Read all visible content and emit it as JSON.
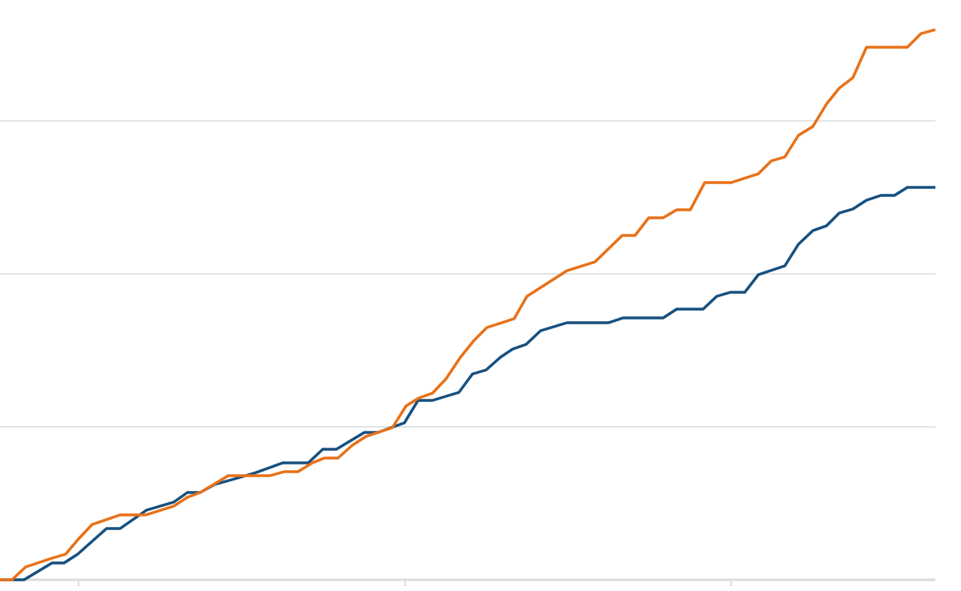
{
  "chart_data": {
    "type": "line",
    "xlim": [
      0,
      1168
    ],
    "xticks": [
      98,
      506,
      913
    ],
    "ylim": [
      0,
      724
    ],
    "yticks": [
      191,
      382,
      573
    ],
    "grid": true,
    "series": [
      {
        "color": "#16507f",
        "x": [
          0,
          30,
          65,
          80,
          97,
          133,
          150,
          183,
          217,
          234,
          250,
          268,
          300,
          320,
          353,
          385,
          403,
          420,
          455,
          472,
          505,
          522,
          540,
          573,
          590,
          607,
          625,
          640,
          657,
          675,
          708,
          760,
          778,
          828,
          845,
          878,
          895,
          912,
          930,
          947,
          980,
          997,
          1015,
          1032,
          1048,
          1065,
          1082,
          1100,
          1117,
          1133,
          1168
        ],
        "values": [
          0,
          0,
          21,
          21,
          32,
          64,
          64,
          87,
          97,
          109,
          109,
          119,
          128,
          134,
          146,
          146,
          163,
          163,
          184,
          184,
          196,
          224,
          224,
          234,
          257,
          262,
          278,
          288,
          294,
          311,
          321,
          321,
          327,
          327,
          338,
          338,
          354,
          359,
          359,
          381,
          392,
          419,
          436,
          442,
          458,
          463,
          474,
          480,
          480,
          490,
          490
        ]
      },
      {
        "color": "#e87118",
        "x": [
          0,
          15,
          32,
          65,
          82,
          98,
          115,
          150,
          182,
          217,
          234,
          250,
          285,
          337,
          355,
          372,
          390,
          405,
          422,
          440,
          457,
          490,
          507,
          523,
          540,
          557,
          575,
          592,
          608,
          642,
          658,
          708,
          743,
          777,
          793,
          810,
          828,
          845,
          862,
          880,
          913,
          947,
          963,
          980,
          997,
          1015,
          1032,
          1048,
          1065,
          1082,
          1133,
          1150,
          1168
        ],
        "values": [
          0,
          0,
          16,
          27,
          32,
          51,
          69,
          81,
          81,
          92,
          103,
          109,
          130,
          130,
          135,
          135,
          146,
          152,
          152,
          168,
          179,
          190,
          217,
          227,
          233,
          251,
          278,
          299,
          315,
          326,
          354,
          386,
          397,
          430,
          430,
          452,
          452,
          462,
          462,
          496,
          496,
          507,
          523,
          528,
          555,
          566,
          594,
          614,
          627,
          665,
          665,
          682,
          687
        ]
      }
    ]
  }
}
